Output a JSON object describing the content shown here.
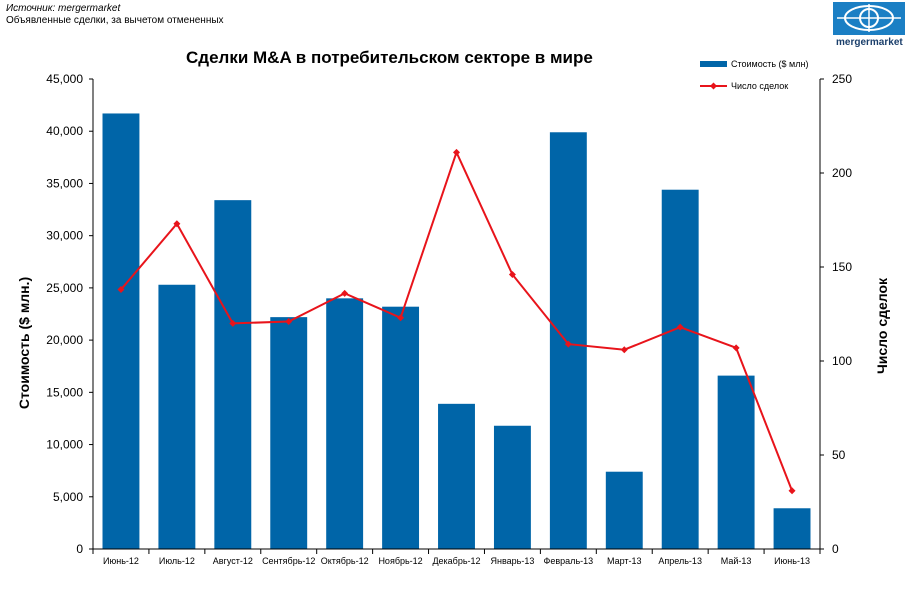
{
  "source": {
    "line1": "Источник: mergermarket",
    "line2": "Объявленные сделки, за вычетом отмененных"
  },
  "logo": {
    "text": "mergermarket"
  },
  "colors": {
    "bars": "#0065a8",
    "line": "#e8141b"
  },
  "chart_data": {
    "type": "bar",
    "title": "Сделки M&A в потребительском секторе в мире",
    "categories": [
      "Июнь-12",
      "Июль-12",
      "Август-12",
      "Сентябрь-12",
      "Октябрь-12",
      "Ноябрь-12",
      "Декабрь-12",
      "Январь-13",
      "Февраль-13",
      "Март-13",
      "Апрель-13",
      "Май-13",
      "Июнь-13"
    ],
    "series": [
      {
        "name": "Стоимость ($ млн)",
        "type": "bar",
        "axis": "left",
        "values": [
          41700,
          25300,
          33400,
          22200,
          24000,
          23200,
          13900,
          11800,
          39900,
          7400,
          34400,
          16600,
          3900
        ]
      },
      {
        "name": "Число сделок",
        "type": "line",
        "axis": "right",
        "values": [
          138,
          173,
          120,
          121,
          136,
          123,
          211,
          146,
          109,
          106,
          118,
          107,
          31
        ]
      }
    ],
    "ylabel": "Стоимость  ($ млн.)",
    "y2label": "Число сделок",
    "ylim": [
      0,
      45000
    ],
    "y2lim": [
      0,
      250
    ],
    "yticks": [
      "0",
      "5,000",
      "10,000",
      "15,000",
      "20,000",
      "25,000",
      "30,000",
      "35,000",
      "40,000",
      "45,000"
    ],
    "y2ticks": [
      "0",
      "50",
      "100",
      "150",
      "200",
      "250"
    ],
    "legend_position": "top-right",
    "grid": false
  }
}
